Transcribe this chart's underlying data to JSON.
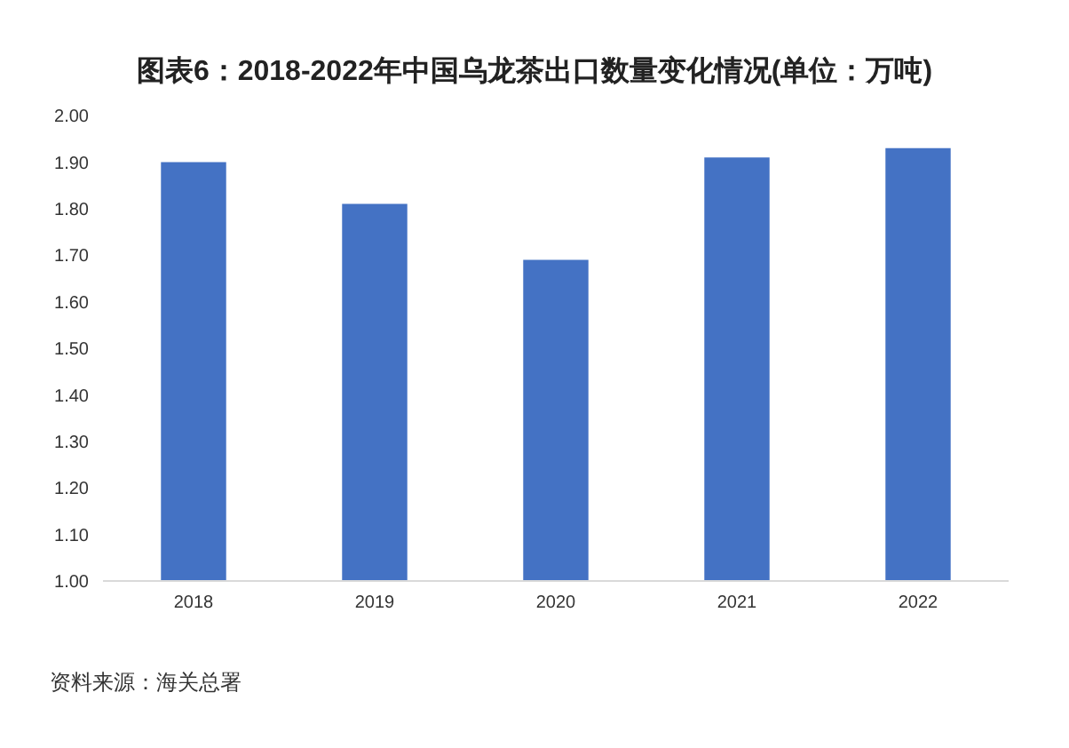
{
  "chart_data": {
    "type": "bar",
    "title": "图表6：2018-2022年中国乌龙茶出口数量变化情况(单位：万吨)",
    "categories": [
      "2018",
      "2019",
      "2020",
      "2021",
      "2022"
    ],
    "values": [
      1.9,
      1.81,
      1.69,
      1.91,
      1.93
    ],
    "color": "#4472c4",
    "ylim": [
      1,
      2
    ],
    "yticks": [
      {
        "value": 1,
        "label": "1.00"
      },
      {
        "value": 1.1,
        "label": "1.10"
      },
      {
        "value": 1.2,
        "label": "1.20"
      },
      {
        "value": 1.3,
        "label": "1.30"
      },
      {
        "value": 1.4,
        "label": "1.40"
      },
      {
        "value": 1.5,
        "label": "1.50"
      },
      {
        "value": 1.6,
        "label": "1.60"
      },
      {
        "value": 1.7,
        "label": "1.70"
      },
      {
        "value": 1.8,
        "label": "1.80"
      },
      {
        "value": 1.9,
        "label": "1.90"
      },
      {
        "value": 2,
        "label": "2.00"
      }
    ],
    "grid": false,
    "annotations": [
      "资料来源：海关总署"
    ]
  }
}
